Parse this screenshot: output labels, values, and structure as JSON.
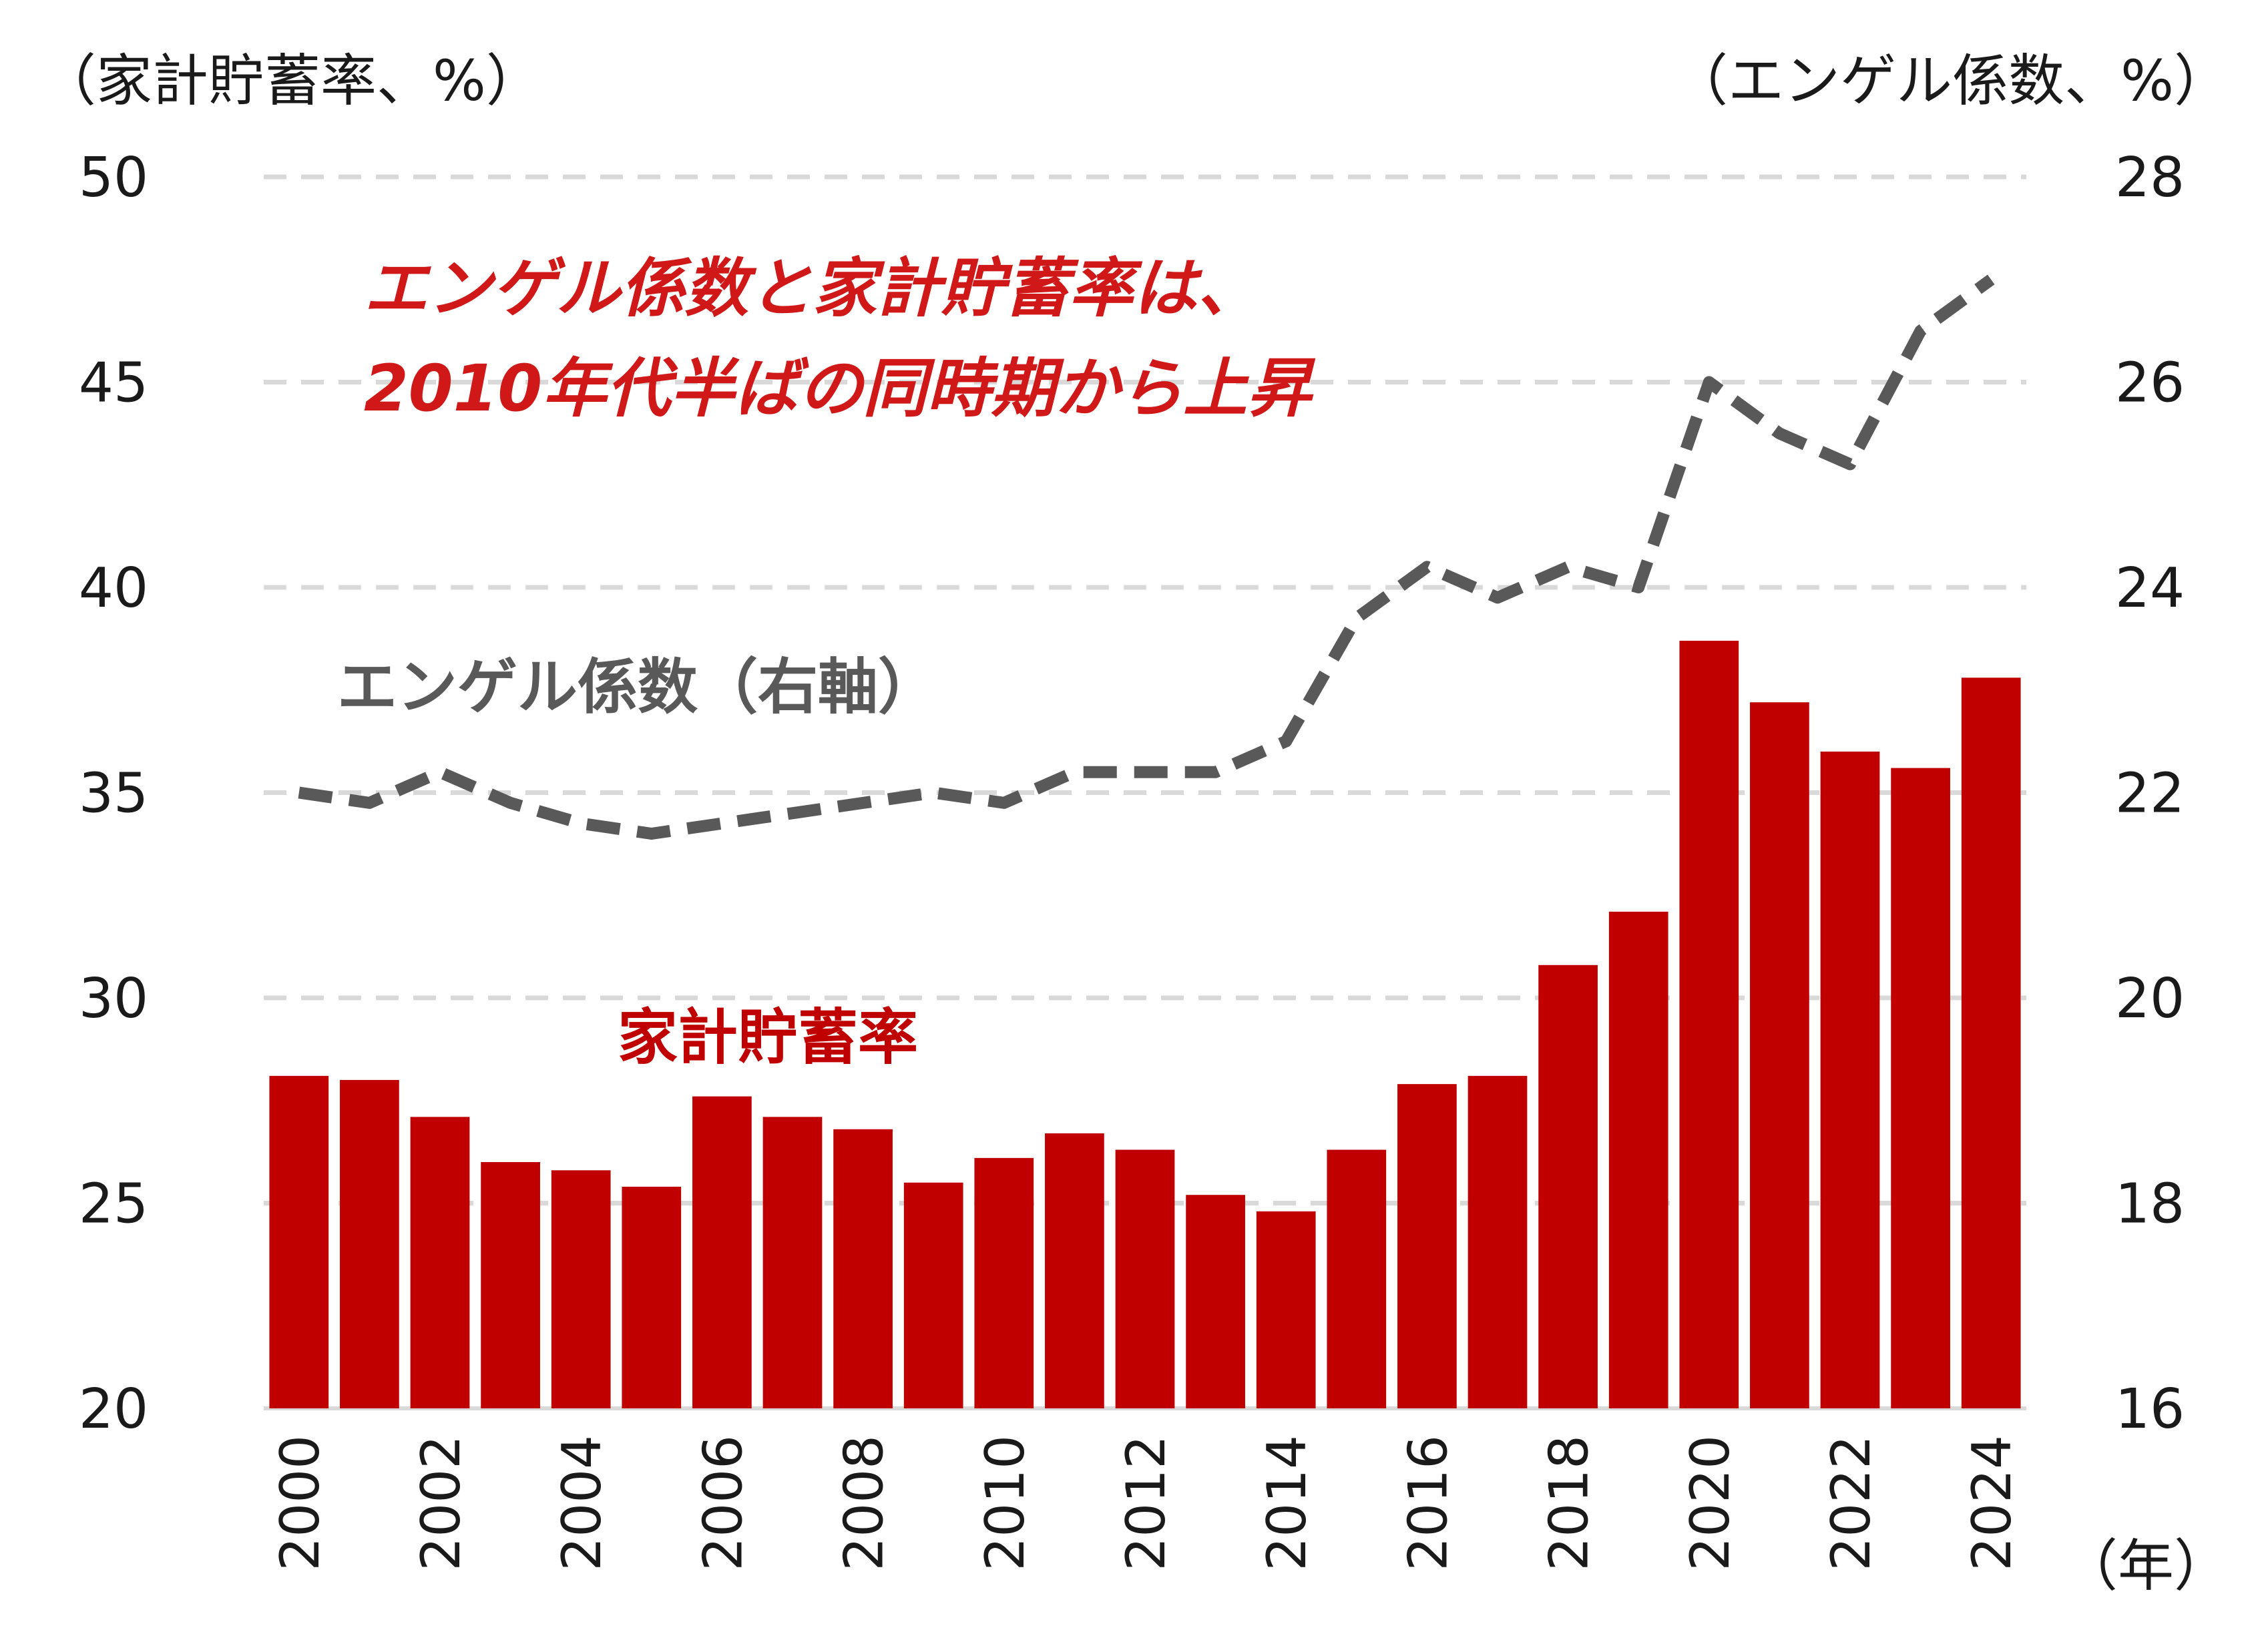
{
  "chart_data": {
    "type": "bar",
    "categories": [
      "2000",
      "2001",
      "2002",
      "2003",
      "2004",
      "2005",
      "2006",
      "2007",
      "2008",
      "2009",
      "2010",
      "2011",
      "2012",
      "2013",
      "2014",
      "2015",
      "2016",
      "2017",
      "2018",
      "2019",
      "2020",
      "2021",
      "2022",
      "2023",
      "2024"
    ],
    "x_tick_labels": [
      "2000",
      "2002",
      "2004",
      "2006",
      "2008",
      "2010",
      "2012",
      "2014",
      "2016",
      "2018",
      "2020",
      "2022",
      "2024"
    ],
    "x_unit_label": "（年）",
    "left_axis": {
      "label": "（家計貯蓄率、%）",
      "ylim": [
        20,
        50
      ],
      "ticks": [
        20,
        25,
        30,
        35,
        40,
        45,
        50
      ]
    },
    "right_axis": {
      "label": "（エンゲル係数、%）",
      "ylim": [
        16,
        28
      ],
      "ticks": [
        16,
        18,
        20,
        22,
        24,
        26,
        28
      ]
    },
    "series": [
      {
        "name": "家計貯蓄率",
        "type": "bar",
        "axis": "left",
        "color": "#c00000",
        "values": [
          28.1,
          28.0,
          27.1,
          26.0,
          25.8,
          25.4,
          27.6,
          27.1,
          26.8,
          25.5,
          26.1,
          26.7,
          26.3,
          25.2,
          24.8,
          26.3,
          27.9,
          28.1,
          30.8,
          32.1,
          38.7,
          37.2,
          36.0,
          35.6,
          37.8
        ]
      },
      {
        "name": "エンゲル係数（右軸）",
        "type": "line",
        "style": "dashed",
        "axis": "right",
        "color": "#595959",
        "values": [
          22.0,
          21.9,
          22.2,
          21.9,
          21.7,
          21.6,
          21.7,
          21.8,
          21.9,
          22.0,
          21.9,
          22.2,
          22.2,
          22.2,
          22.5,
          23.7,
          24.2,
          23.9,
          24.2,
          24.0,
          26.0,
          25.5,
          25.2,
          26.5,
          27.0
        ]
      }
    ],
    "annotation": {
      "line1": "エンゲル係数と家計貯蓄率は、",
      "line2": "2010年代半ばの同時期から上昇"
    },
    "bar_series_label": "家計貯蓄率",
    "line_series_label": "エンゲル係数（右軸）",
    "grid": true
  }
}
